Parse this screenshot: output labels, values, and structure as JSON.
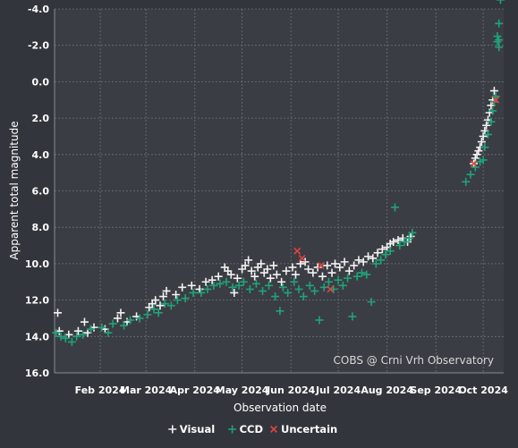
{
  "colors": {
    "background": "#33353c",
    "plot_background": "#3b3d44",
    "grid": "#6f7178",
    "text": "#ffffff",
    "visual": "#f2f2f2",
    "ccd": "#1fa37a",
    "uncertain": "#e0453f"
  },
  "chart_data": {
    "type": "scatter",
    "title": "",
    "xlabel": "Observation date",
    "ylabel": "Apparent total magnitude",
    "x_range": [
      "2024-01-03",
      "2024-10-14"
    ],
    "x_ticks": [
      {
        "date": "2024-02-01",
        "label": "Feb 2024"
      },
      {
        "date": "2024-03-01",
        "label": "Mar 2024"
      },
      {
        "date": "2024-04-01",
        "label": "Apr 2024"
      },
      {
        "date": "2024-05-01",
        "label": "May 2024"
      },
      {
        "date": "2024-06-01",
        "label": "Jun 2024"
      },
      {
        "date": "2024-07-01",
        "label": "Jul 2024"
      },
      {
        "date": "2024-08-01",
        "label": "Aug 2024"
      },
      {
        "date": "2024-09-01",
        "label": "Sep 2024"
      },
      {
        "date": "2024-10-01",
        "label": "Oct 2024"
      }
    ],
    "y_range": [
      -4.0,
      16.0
    ],
    "y_inverted": true,
    "y_ticks": [
      {
        "value": -4,
        "label": "-4.0"
      },
      {
        "value": -2,
        "label": "-2.0"
      },
      {
        "value": 0,
        "label": "0.0"
      },
      {
        "value": 2,
        "label": "2.0"
      },
      {
        "value": 4,
        "label": "4.0"
      },
      {
        "value": 6,
        "label": "6.0"
      },
      {
        "value": 8,
        "label": "8.0"
      },
      {
        "value": 10,
        "label": "10.0"
      },
      {
        "value": 12,
        "label": "12.0"
      },
      {
        "value": 14,
        "label": "14.0"
      },
      {
        "value": 16,
        "label": "16.0"
      }
    ],
    "grid": true,
    "legend_position": "bottom",
    "annotation": "COBS @ Crni Vrh Observatory",
    "series": [
      {
        "name": "Visual",
        "marker": "+",
        "color": "#f2f2f2",
        "points": [
          [
            "2024-01-05",
            12.7
          ],
          [
            "2024-01-06",
            13.7
          ],
          [
            "2024-01-12",
            13.9
          ],
          [
            "2024-01-18",
            13.7
          ],
          [
            "2024-01-22",
            13.2
          ],
          [
            "2024-01-24",
            13.8
          ],
          [
            "2024-01-28",
            13.5
          ],
          [
            "2024-02-04",
            13.6
          ],
          [
            "2024-02-12",
            13.0
          ],
          [
            "2024-02-14",
            12.7
          ],
          [
            "2024-02-18",
            13.2
          ],
          [
            "2024-02-24",
            12.9
          ],
          [
            "2024-03-03",
            12.4
          ],
          [
            "2024-03-05",
            12.2
          ],
          [
            "2024-03-07",
            12.0
          ],
          [
            "2024-03-10",
            12.3
          ],
          [
            "2024-03-12",
            11.8
          ],
          [
            "2024-03-14",
            11.5
          ],
          [
            "2024-03-20",
            11.7
          ],
          [
            "2024-03-24",
            11.3
          ],
          [
            "2024-03-30",
            11.2
          ],
          [
            "2024-04-04",
            11.4
          ],
          [
            "2024-04-08",
            11.0
          ],
          [
            "2024-04-12",
            10.9
          ],
          [
            "2024-04-16",
            10.7
          ],
          [
            "2024-04-20",
            10.2
          ],
          [
            "2024-04-22",
            10.4
          ],
          [
            "2024-04-24",
            10.6
          ],
          [
            "2024-04-26",
            11.6
          ],
          [
            "2024-04-28",
            10.8
          ],
          [
            "2024-05-01",
            10.3
          ],
          [
            "2024-05-03",
            10.1
          ],
          [
            "2024-05-05",
            9.8
          ],
          [
            "2024-05-07",
            10.4
          ],
          [
            "2024-05-09",
            10.7
          ],
          [
            "2024-05-11",
            10.2
          ],
          [
            "2024-05-13",
            10.0
          ],
          [
            "2024-05-15",
            10.5
          ],
          [
            "2024-05-17",
            10.3
          ],
          [
            "2024-05-19",
            10.8
          ],
          [
            "2024-05-21",
            10.1
          ],
          [
            "2024-05-23",
            10.6
          ],
          [
            "2024-05-26",
            11.0
          ],
          [
            "2024-05-29",
            10.4
          ],
          [
            "2024-06-02",
            10.2
          ],
          [
            "2024-06-04",
            10.6
          ],
          [
            "2024-06-07",
            10.0
          ],
          [
            "2024-06-10",
            9.9
          ],
          [
            "2024-06-12",
            10.3
          ],
          [
            "2024-06-15",
            10.5
          ],
          [
            "2024-06-18",
            10.2
          ],
          [
            "2024-06-21",
            10.7
          ],
          [
            "2024-06-24",
            10.1
          ],
          [
            "2024-06-27",
            10.5
          ],
          [
            "2024-06-29",
            10.0
          ],
          [
            "2024-07-02",
            10.2
          ],
          [
            "2024-07-05",
            9.9
          ],
          [
            "2024-07-08",
            10.4
          ],
          [
            "2024-07-11",
            10.1
          ],
          [
            "2024-07-14",
            9.8
          ],
          [
            "2024-07-17",
            9.9
          ],
          [
            "2024-07-20",
            9.6
          ],
          [
            "2024-07-23",
            9.7
          ],
          [
            "2024-07-26",
            9.4
          ],
          [
            "2024-07-29",
            9.2
          ],
          [
            "2024-08-01",
            9.1
          ],
          [
            "2024-08-03",
            8.9
          ],
          [
            "2024-08-05",
            8.8
          ],
          [
            "2024-08-08",
            8.7
          ],
          [
            "2024-08-11",
            8.6
          ],
          [
            "2024-08-14",
            8.8
          ],
          [
            "2024-08-16",
            8.5
          ],
          [
            "2024-09-25",
            4.5
          ],
          [
            "2024-09-26",
            4.2
          ],
          [
            "2024-09-27",
            4.0
          ],
          [
            "2024-09-28",
            3.8
          ],
          [
            "2024-09-29",
            3.6
          ],
          [
            "2024-09-30",
            3.3
          ],
          [
            "2024-10-01",
            3.0
          ],
          [
            "2024-10-02",
            2.7
          ],
          [
            "2024-10-03",
            2.4
          ],
          [
            "2024-10-04",
            2.1
          ],
          [
            "2024-10-05",
            1.7
          ],
          [
            "2024-10-06",
            1.3
          ],
          [
            "2024-10-07",
            1.0
          ],
          [
            "2024-10-08",
            0.5
          ]
        ]
      },
      {
        "name": "CCD",
        "marker": "+",
        "color": "#1fa37a",
        "points": [
          [
            "2024-01-04",
            13.8
          ],
          [
            "2024-01-07",
            14.0
          ],
          [
            "2024-01-10",
            14.1
          ],
          [
            "2024-01-14",
            14.3
          ],
          [
            "2024-01-17",
            14.0
          ],
          [
            "2024-01-21",
            13.9
          ],
          [
            "2024-01-26",
            13.6
          ],
          [
            "2024-02-02",
            13.5
          ],
          [
            "2024-02-06",
            13.8
          ],
          [
            "2024-02-09",
            13.3
          ],
          [
            "2024-02-16",
            13.4
          ],
          [
            "2024-02-20",
            13.1
          ],
          [
            "2024-02-26",
            13.0
          ],
          [
            "2024-03-02",
            12.8
          ],
          [
            "2024-03-06",
            12.5
          ],
          [
            "2024-03-09",
            12.7
          ],
          [
            "2024-03-13",
            12.2
          ],
          [
            "2024-03-17",
            12.3
          ],
          [
            "2024-03-21",
            12.0
          ],
          [
            "2024-03-26",
            11.9
          ],
          [
            "2024-03-31",
            11.6
          ],
          [
            "2024-04-05",
            11.6
          ],
          [
            "2024-04-09",
            11.4
          ],
          [
            "2024-04-13",
            11.2
          ],
          [
            "2024-04-17",
            11.1
          ],
          [
            "2024-04-21",
            11.0
          ],
          [
            "2024-04-25",
            11.3
          ],
          [
            "2024-04-29",
            11.2
          ],
          [
            "2024-05-02",
            11.0
          ],
          [
            "2024-05-06",
            11.4
          ],
          [
            "2024-05-10",
            11.1
          ],
          [
            "2024-05-14",
            11.5
          ],
          [
            "2024-05-18",
            11.2
          ],
          [
            "2024-05-22",
            11.8
          ],
          [
            "2024-05-25",
            12.6
          ],
          [
            "2024-05-27",
            11.3
          ],
          [
            "2024-05-30",
            11.6
          ],
          [
            "2024-06-03",
            11.0
          ],
          [
            "2024-06-06",
            11.4
          ],
          [
            "2024-06-09",
            11.8
          ],
          [
            "2024-06-13",
            11.2
          ],
          [
            "2024-06-16",
            11.5
          ],
          [
            "2024-06-19",
            13.1
          ],
          [
            "2024-06-22",
            11.3
          ],
          [
            "2024-06-25",
            11.0
          ],
          [
            "2024-06-28",
            11.4
          ],
          [
            "2024-07-01",
            10.9
          ],
          [
            "2024-07-04",
            11.2
          ],
          [
            "2024-07-07",
            10.8
          ],
          [
            "2024-07-10",
            12.9
          ],
          [
            "2024-07-13",
            10.7
          ],
          [
            "2024-07-16",
            10.5
          ],
          [
            "2024-07-19",
            10.6
          ],
          [
            "2024-07-22",
            12.1
          ],
          [
            "2024-07-25",
            10.0
          ],
          [
            "2024-07-28",
            9.8
          ],
          [
            "2024-07-31",
            9.5
          ],
          [
            "2024-08-03",
            9.3
          ],
          [
            "2024-08-06",
            6.9
          ],
          [
            "2024-08-09",
            9.0
          ],
          [
            "2024-08-12",
            8.8
          ],
          [
            "2024-08-15",
            8.6
          ],
          [
            "2024-08-17",
            8.3
          ],
          [
            "2024-09-20",
            5.5
          ],
          [
            "2024-09-23",
            5.1
          ],
          [
            "2024-09-26",
            4.7
          ],
          [
            "2024-09-29",
            4.4
          ],
          [
            "2024-10-01",
            4.3
          ],
          [
            "2024-10-02",
            3.6
          ],
          [
            "2024-10-04",
            2.9
          ],
          [
            "2024-10-06",
            2.2
          ],
          [
            "2024-10-07",
            1.6
          ],
          [
            "2024-10-08",
            1.1
          ],
          [
            "2024-10-09",
            0.8
          ],
          [
            "2024-10-10",
            -2.2
          ],
          [
            "2024-10-10",
            -2.5
          ],
          [
            "2024-10-11",
            -1.9
          ],
          [
            "2024-10-11",
            -3.2
          ],
          [
            "2024-10-11",
            -4.7
          ],
          [
            "2024-10-11",
            -2.3
          ],
          [
            "2024-10-12",
            -4.5
          ]
        ]
      },
      {
        "name": "Uncertain",
        "marker": "x",
        "color": "#e0453f",
        "points": [
          [
            "2024-06-05",
            9.3
          ],
          [
            "2024-06-08",
            9.7
          ],
          [
            "2024-06-20",
            10.1
          ],
          [
            "2024-06-26",
            11.4
          ],
          [
            "2024-09-25",
            4.5
          ],
          [
            "2024-10-09",
            1.0
          ]
        ]
      }
    ]
  }
}
